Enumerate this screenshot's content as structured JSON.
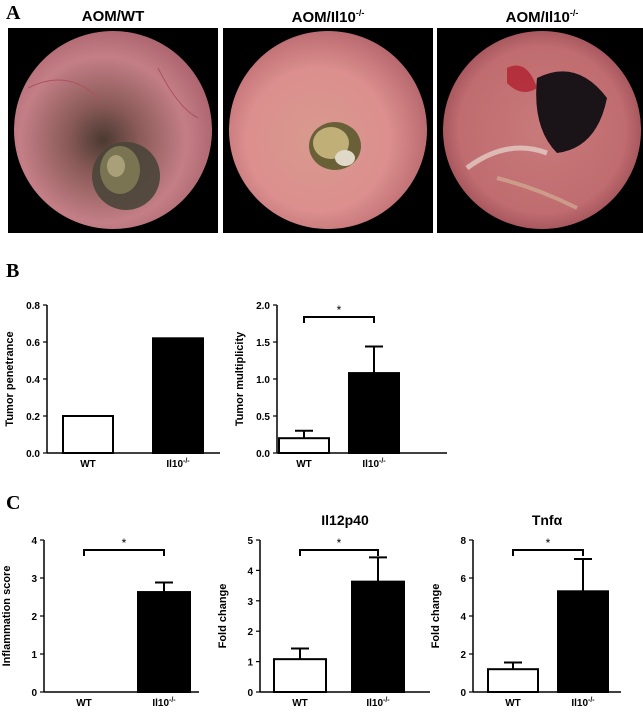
{
  "panels": {
    "a_label": "A",
    "b_label": "B",
    "c_label": "C",
    "images": [
      {
        "title": "AOM/WT"
      },
      {
        "title_main": "AOM/Il10",
        "title_sup": "-/-"
      },
      {
        "title_main": "AOM/Il10",
        "title_sup": "-/-"
      }
    ]
  },
  "chart_data": [
    {
      "type": "bar",
      "title": "",
      "categories": [
        "WT",
        "Il10-/-"
      ],
      "category_labels": [
        {
          "main": "WT",
          "sup": ""
        },
        {
          "main": "Il10",
          "sup": "-/-"
        }
      ],
      "values": [
        0.2,
        0.62
      ],
      "errors": [
        null,
        null
      ],
      "ylabel": "Tumor penetrance",
      "ylim": [
        0,
        0.8
      ],
      "yticks": [
        "0.0",
        "0.2",
        "0.4",
        "0.6",
        "0.8"
      ],
      "significance": null,
      "bar_fills": [
        "#ffffff",
        "#000000"
      ]
    },
    {
      "type": "bar",
      "title": "",
      "categories": [
        "WT",
        "Il10-/-"
      ],
      "category_labels": [
        {
          "main": "WT",
          "sup": ""
        },
        {
          "main": "Il10",
          "sup": "-/-"
        }
      ],
      "values": [
        0.2,
        1.08
      ],
      "errors": [
        0.1,
        0.36
      ],
      "ylabel": "Tumor multiplicity",
      "ylim": [
        0,
        2.0
      ],
      "yticks": [
        "0.0",
        "0.5",
        "1.0",
        "1.5",
        "2.0"
      ],
      "significance": "*",
      "bar_fills": [
        "#ffffff",
        "#000000"
      ]
    },
    {
      "type": "bar",
      "title": "",
      "categories": [
        "WT",
        "Il10-/-"
      ],
      "category_labels": [
        {
          "main": "WT",
          "sup": ""
        },
        {
          "main": "Il10",
          "sup": "-/-"
        }
      ],
      "values": [
        0,
        2.63
      ],
      "errors": [
        null,
        0.25
      ],
      "ylabel": "Inflammation score",
      "ylim": [
        0,
        4
      ],
      "yticks": [
        "0",
        "1",
        "2",
        "3",
        "4"
      ],
      "significance": "*",
      "bar_fills": [
        "#ffffff",
        "#000000"
      ]
    },
    {
      "type": "bar",
      "title": "Il12p40",
      "categories": [
        "WT",
        "Il10-/-"
      ],
      "category_labels": [
        {
          "main": "WT",
          "sup": ""
        },
        {
          "main": "Il10",
          "sup": "-/-"
        }
      ],
      "values": [
        1.08,
        3.63
      ],
      "errors": [
        0.35,
        0.8
      ],
      "ylabel": "Fold change",
      "ylim": [
        0,
        5
      ],
      "yticks": [
        "0",
        "1",
        "2",
        "3",
        "4",
        "5"
      ],
      "significance": "*",
      "bar_fills": [
        "#ffffff",
        "#000000"
      ]
    },
    {
      "type": "bar",
      "title": "Tnfα",
      "categories": [
        "WT",
        "Il10-/-"
      ],
      "category_labels": [
        {
          "main": "WT",
          "sup": ""
        },
        {
          "main": "Il10",
          "sup": "-/-"
        }
      ],
      "values": [
        1.2,
        5.3
      ],
      "errors": [
        0.35,
        1.7
      ],
      "ylabel": "Fold change",
      "ylim": [
        0,
        8
      ],
      "yticks": [
        "0",
        "2",
        "4",
        "6",
        "8"
      ],
      "significance": "*",
      "bar_fills": [
        "#ffffff",
        "#000000"
      ]
    }
  ]
}
